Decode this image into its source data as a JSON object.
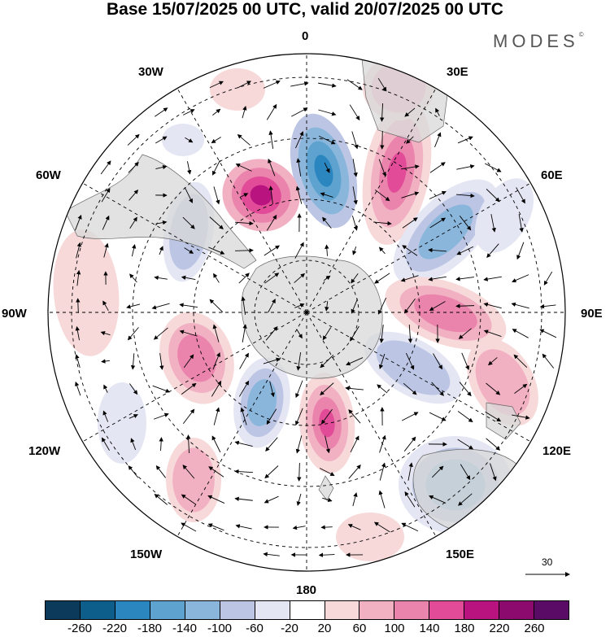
{
  "title": "Base 15/07/2025 00 UTC, valid 20/07/2025 00 UTC",
  "logo": "MODES",
  "logo_mark": "©",
  "map": {
    "projection": "south polar stereographic",
    "longitude_labels": {
      "top": "0",
      "top_right": "30E",
      "right_upper": "60E",
      "right": "90E",
      "right_lower": "120E",
      "bottom_right": "150E",
      "bottom": "180",
      "bottom_left": "150W",
      "left_lower": "120W",
      "left": "90W",
      "left_upper": "60W",
      "top_left": "30W"
    },
    "reference_vector": {
      "label": "30"
    }
  },
  "colorbar": {
    "tick_labels": [
      "-260",
      "-220",
      "-180",
      "-140",
      "-100",
      "-60",
      "-20",
      "20",
      "60",
      "100",
      "140",
      "180",
      "220",
      "260"
    ],
    "colors": [
      "#0b3a5a",
      "#0e5e8c",
      "#2b86bf",
      "#5ea3cf",
      "#8ab6dc",
      "#bcc6e4",
      "#e4e6f3",
      "#ffffff",
      "#f7d9da",
      "#f2b1c3",
      "#ea84ac",
      "#e14b98",
      "#b8137f",
      "#8c0a6e",
      "#5a0b66"
    ]
  }
}
